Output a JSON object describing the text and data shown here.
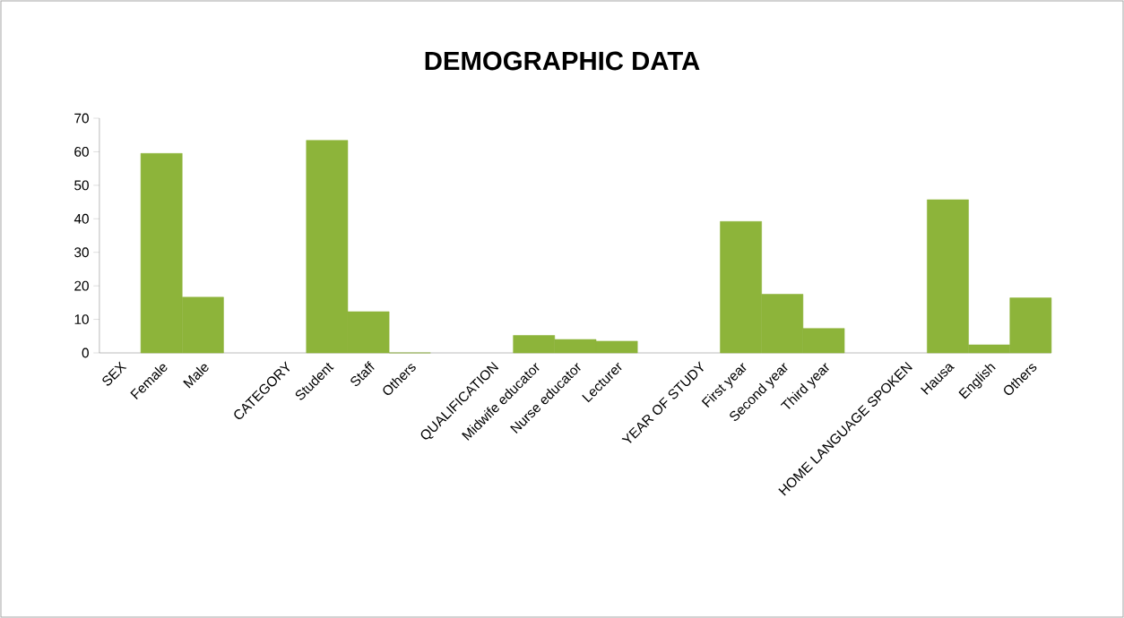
{
  "chart_data": {
    "type": "bar",
    "title": "DEMOGRAPHIC DATA",
    "categories": [
      "SEX",
      "Female",
      "Male",
      null,
      "CATEGORY",
      "Student",
      "Staff",
      "Others",
      null,
      "QUALIFICATION",
      "Midwife educator",
      "Nurse educator",
      "Lecturer",
      null,
      "YEAR OF STUDY",
      "First year",
      "Second year",
      "Third year",
      null,
      "HOME LANGUAGE SPOKEN",
      "Hausa",
      "English",
      "Others"
    ],
    "values": [
      null,
      59.5,
      16.6,
      null,
      null,
      63.4,
      12.3,
      0,
      null,
      null,
      5.2,
      4.0,
      3.5,
      null,
      null,
      39.2,
      17.5,
      7.3,
      null,
      null,
      45.7,
      2.4,
      16.4
    ],
    "color": "#8db43a",
    "ylim": [
      0,
      70
    ],
    "yticks": [
      0,
      10,
      20,
      30,
      40,
      50,
      60,
      70
    ]
  }
}
